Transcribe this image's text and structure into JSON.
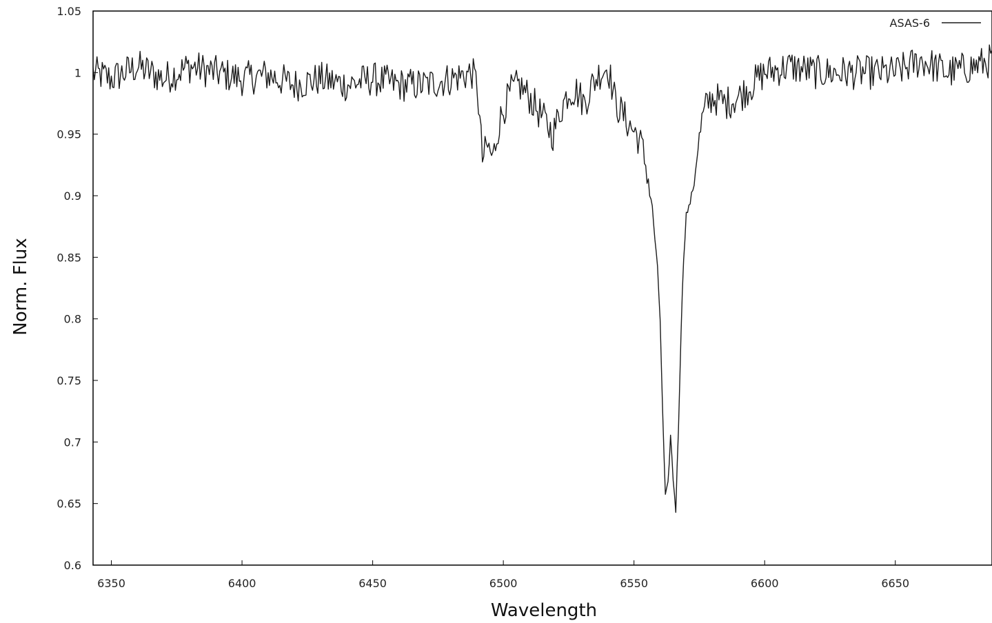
{
  "chart_data": {
    "type": "line",
    "title": "",
    "xlabel": "Wavelength",
    "ylabel": "Norm. Flux",
    "xlim": [
      6343,
      6687
    ],
    "ylim": [
      0.6,
      1.05
    ],
    "grid": false,
    "legend_position": "top-right",
    "x_ticks": [
      "6350",
      "6400",
      "6450",
      "6500",
      "6550",
      "6600",
      "6650"
    ],
    "y_ticks": [
      "0.6",
      "0.65",
      "0.7",
      "0.75",
      "0.8",
      "0.85",
      "0.9",
      "0.95",
      "1",
      "1.05"
    ],
    "line_color": "#1a1a1a",
    "series": [
      {
        "name": "ASAS-6",
        "x": [
          6343,
          6350,
          6360,
          6370,
          6380,
          6390,
          6400,
          6410,
          6420,
          6430,
          6440,
          6450,
          6460,
          6470,
          6480,
          6488,
          6490,
          6492,
          6494,
          6496,
          6498,
          6500,
          6503,
          6506,
          6510,
          6513,
          6516,
          6519,
          6522,
          6525,
          6528,
          6531,
          6534,
          6537,
          6540,
          6543,
          6546,
          6549,
          6551,
          6553,
          6555,
          6557,
          6559,
          6560,
          6561,
          6562,
          6563,
          6564,
          6565,
          6566,
          6567,
          6568,
          6569,
          6570,
          6571,
          6572,
          6573,
          6574,
          6576,
          6578,
          6580,
          6585,
          6590,
          6595,
          6600,
          6610,
          6620,
          6630,
          6640,
          6650,
          6660,
          6670,
          6680,
          6687
        ],
        "y": [
          1.0,
          0.995,
          1.005,
          0.995,
          1.005,
          1.0,
          0.995,
          0.998,
          0.99,
          0.995,
          0.99,
          0.995,
          0.99,
          0.99,
          0.995,
          1.0,
          0.99,
          0.93,
          0.94,
          0.93,
          0.955,
          0.97,
          0.985,
          0.99,
          0.98,
          0.97,
          0.96,
          0.95,
          0.97,
          0.985,
          0.985,
          0.975,
          0.99,
          1.0,
          1.005,
          0.975,
          0.965,
          0.955,
          0.95,
          0.94,
          0.92,
          0.89,
          0.84,
          0.8,
          0.72,
          0.655,
          0.665,
          0.705,
          0.67,
          0.645,
          0.71,
          0.79,
          0.85,
          0.885,
          0.89,
          0.9,
          0.91,
          0.93,
          0.96,
          0.975,
          0.98,
          0.975,
          0.98,
          0.99,
          1.0,
          1.005,
          1.0,
          1.0,
          1.0,
          1.0,
          1.01,
          1.0,
          1.005,
          1.01
        ]
      }
    ]
  }
}
